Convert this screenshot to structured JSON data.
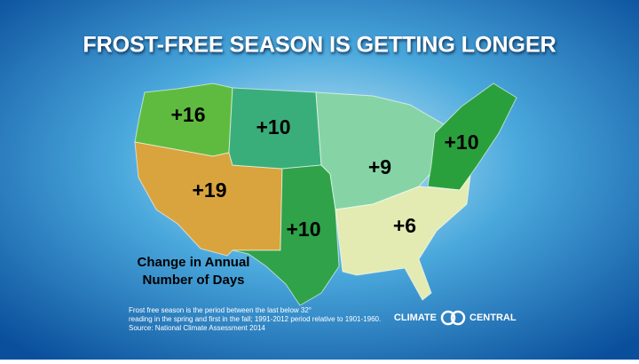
{
  "title": "FROST-FREE SEASON IS GETTING LONGER",
  "regions": [
    {
      "label": "+16",
      "color": "#5fbb3f"
    },
    {
      "label": "+19",
      "color": "#d9a43e"
    },
    {
      "label": "+10",
      "color": "#3aae7a"
    },
    {
      "label": "+10",
      "color": "#2fa24a"
    },
    {
      "label": "+9",
      "color": "#86d4a6"
    },
    {
      "label": "+10",
      "color": "#2aa03c"
    },
    {
      "label": "+6",
      "color": "#e4ebb2"
    }
  ],
  "legend": [
    "Change in Annual",
    "Number of Days"
  ],
  "footnote": [
    "Frost free season is the period between the last below 32°",
    "reading in the spring and first in the fall; 1991-2012 period relative to 1901-1960.",
    "Source:  National Climate Assessment 2014"
  ],
  "logo": [
    "CLIMATE",
    "CENTRAL"
  ]
}
